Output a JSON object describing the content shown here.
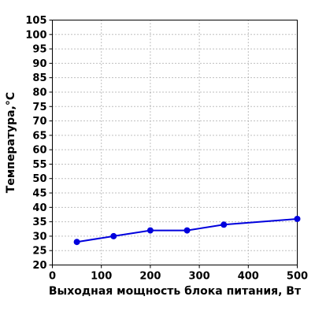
{
  "chart_data": {
    "type": "line",
    "title": "",
    "xlabel": "Выходная мощность блока питания, Вт",
    "ylabel": "Температура,°C",
    "xlim": [
      0,
      500
    ],
    "ylim": [
      20,
      105
    ],
    "x_ticks": [
      "0",
      "100",
      "200",
      "300",
      "400",
      "500"
    ],
    "y_ticks": [
      "20",
      "25",
      "30",
      "35",
      "40",
      "45",
      "50",
      "55",
      "60",
      "65",
      "70",
      "75",
      "80",
      "85",
      "90",
      "95",
      "100",
      "105"
    ],
    "grid": true,
    "series": [
      {
        "x": [
          50,
          125,
          200,
          275,
          350,
          500
        ],
        "y": [
          28,
          30,
          32,
          32,
          34,
          36
        ],
        "color": "#0000dd"
      }
    ]
  }
}
